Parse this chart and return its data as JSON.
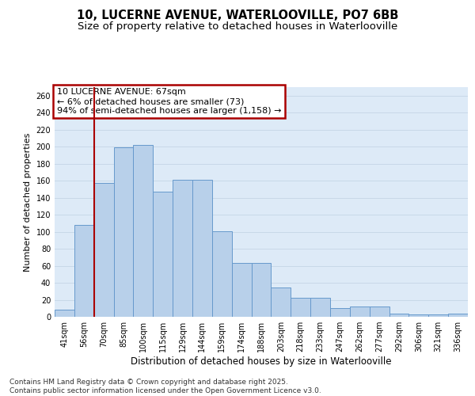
{
  "title1": "10, LUCERNE AVENUE, WATERLOOVILLE, PO7 6BB",
  "title2": "Size of property relative to detached houses in Waterlooville",
  "xlabel": "Distribution of detached houses by size in Waterlooville",
  "ylabel": "Number of detached properties",
  "categories": [
    "41sqm",
    "56sqm",
    "70sqm",
    "85sqm",
    "100sqm",
    "115sqm",
    "129sqm",
    "144sqm",
    "159sqm",
    "174sqm",
    "188sqm",
    "203sqm",
    "218sqm",
    "233sqm",
    "247sqm",
    "262sqm",
    "277sqm",
    "292sqm",
    "306sqm",
    "321sqm",
    "336sqm"
  ],
  "values": [
    8,
    108,
    157,
    199,
    202,
    147,
    161,
    161,
    101,
    63,
    63,
    34,
    22,
    22,
    10,
    12,
    12,
    4,
    3,
    3,
    4
  ],
  "bar_color": "#b8d0ea",
  "bar_edge_color": "#6699cc",
  "vline_color": "#aa0000",
  "vline_pos": 1.5,
  "annotation_text": "10 LUCERNE AVENUE: 67sqm\n← 6% of detached houses are smaller (73)\n94% of semi-detached houses are larger (1,158) →",
  "annotation_box_color": "#ffffff",
  "annotation_box_edge": "#aa0000",
  "ylim": [
    0,
    270
  ],
  "yticks": [
    0,
    20,
    40,
    60,
    80,
    100,
    120,
    140,
    160,
    180,
    200,
    220,
    240,
    260
  ],
  "grid_color": "#c8d8e8",
  "bg_color": "#ddeaf7",
  "footer": "Contains HM Land Registry data © Crown copyright and database right 2025.\nContains public sector information licensed under the Open Government Licence v3.0.",
  "title1_fontsize": 10.5,
  "title2_fontsize": 9.5,
  "xlabel_fontsize": 8.5,
  "ylabel_fontsize": 8,
  "tick_fontsize": 7,
  "annot_fontsize": 8,
  "footer_fontsize": 6.5
}
